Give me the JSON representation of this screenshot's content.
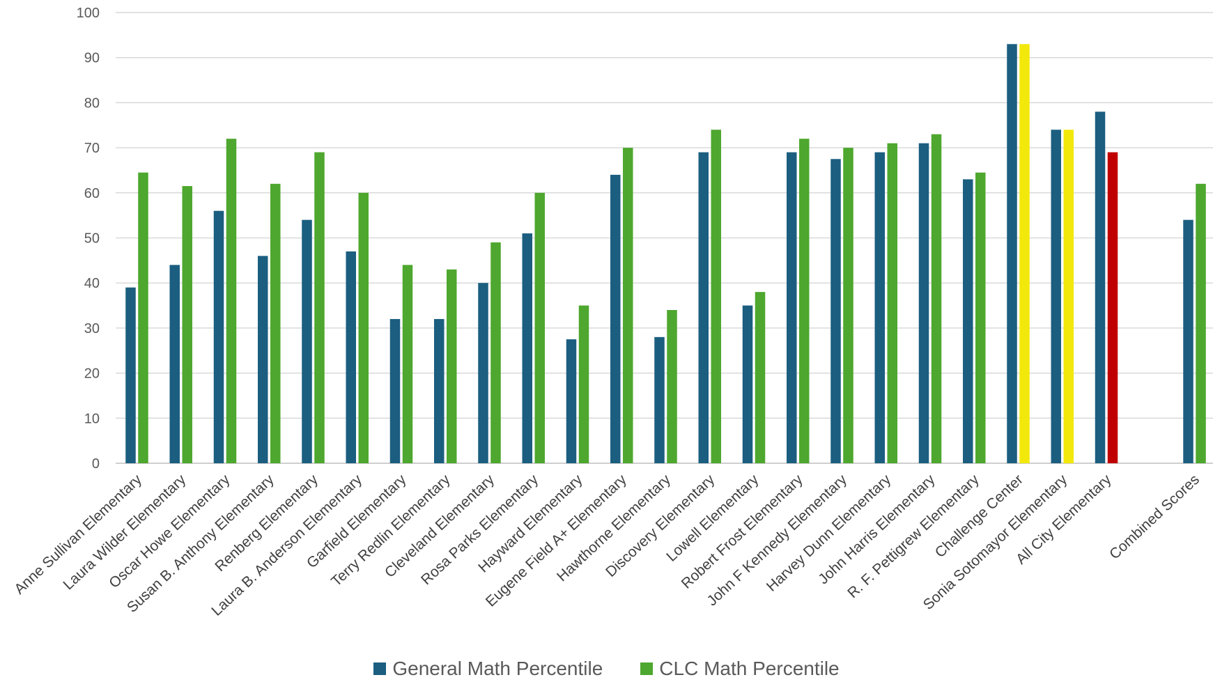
{
  "chart_data": {
    "type": "bar",
    "categories": [
      "Anne Sullivan Elementary",
      "Laura Wilder Elementary",
      "Oscar Howe Elementary",
      "Susan B. Anthony Elementary",
      "Renberg Elementary",
      "Laura B. Anderson Elementary",
      "Garfield Elementary",
      "Terry Redlin Elementary",
      "Cleveland Elementary",
      "Rosa Parks Elementary",
      "Hayward Elementary",
      "Eugene Field A+ Elementary",
      "Hawthorne Elementary",
      "Discovery Elementary",
      "Lowell Elementary",
      "Robert Frost Elementary",
      "John F Kennedy Elementary",
      "Harvey Dunn Elementary",
      "John Harris Elementary",
      "R. F. Pettigrew Elementary",
      "Challenge Center",
      "Sonia Sotomayor Elementary",
      "All City Elementary",
      "",
      "Combined Scores"
    ],
    "series": [
      {
        "name": "General Math Percentile",
        "color": "#1b5e80",
        "values": [
          39,
          44,
          56,
          46,
          54,
          47,
          32,
          32,
          40,
          51,
          27.5,
          64,
          28,
          69,
          35,
          69,
          67.5,
          69,
          71,
          63,
          93,
          74,
          78,
          null,
          54
        ]
      },
      {
        "name": "CLC Math Percentile",
        "color": "#4ea72e",
        "values": [
          64.5,
          61.5,
          72,
          62,
          69,
          60,
          44,
          43,
          49,
          60,
          35,
          70,
          34,
          74,
          38,
          72,
          70,
          71,
          73,
          64.5,
          93,
          74,
          69,
          null,
          62
        ],
        "point_colors": {
          "20": "#f2e80c",
          "21": "#f2e80c",
          "22": "#c00000"
        }
      }
    ],
    "ylim": [
      0,
      100
    ],
    "yticks": [
      0,
      10,
      20,
      30,
      40,
      50,
      60,
      70,
      80,
      90,
      100
    ],
    "grid": true,
    "legend_position": "bottom",
    "title": "",
    "xlabel": "",
    "ylabel": ""
  }
}
